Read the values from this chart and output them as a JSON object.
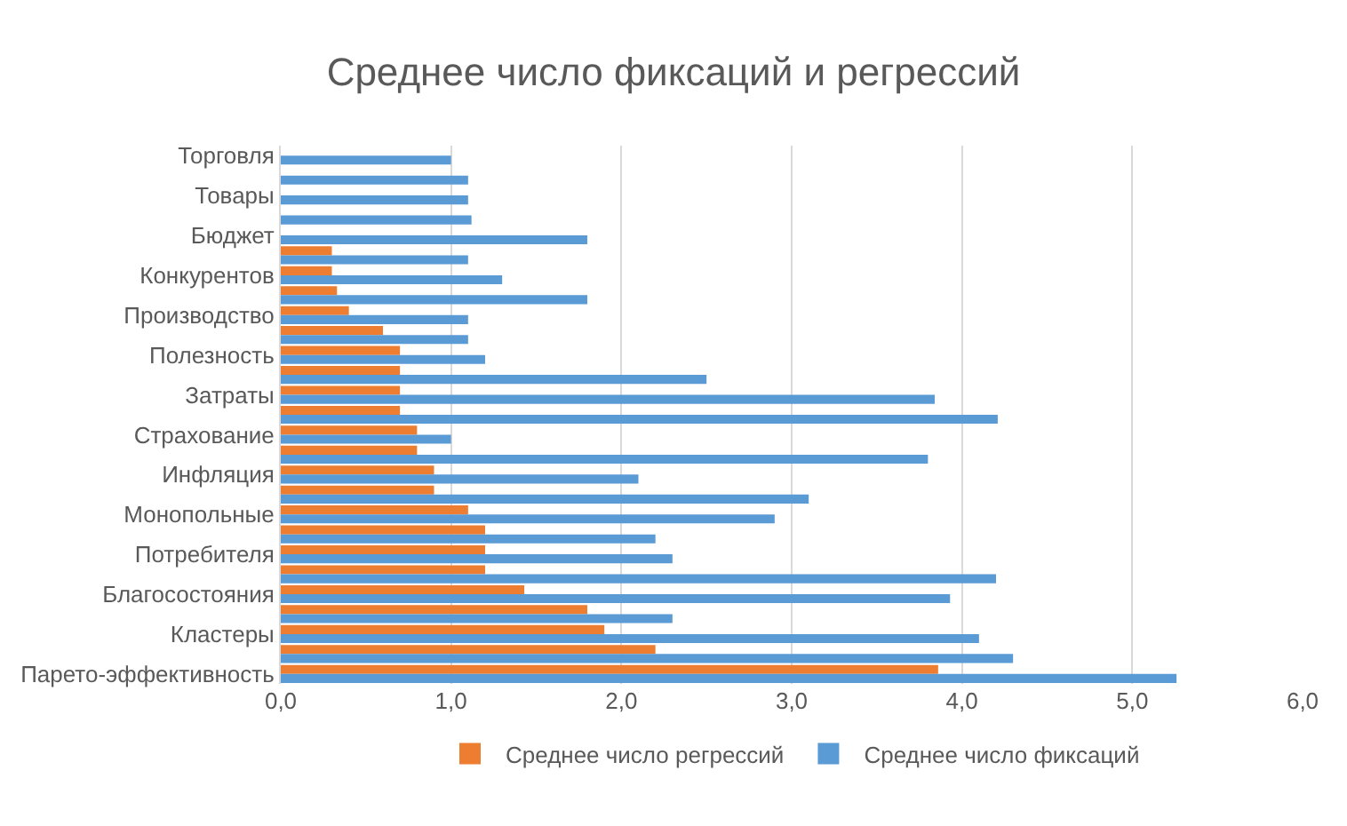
{
  "chart_data": {
    "type": "bar",
    "orientation": "horizontal",
    "title": "Среднее число фиксаций и регрессий",
    "categories": [
      "Торговля",
      null,
      "Товары",
      null,
      "Бюджет",
      null,
      "Конкурентов",
      null,
      "Производство",
      null,
      "Полезность",
      null,
      "Затраты",
      null,
      "Страхование",
      null,
      "Инфляция",
      null,
      "Монопольные",
      null,
      "Потребителя",
      null,
      "Благосостояния",
      null,
      "Кластеры",
      null,
      "Парето-эффективность"
    ],
    "series": [
      {
        "name": "Среднее число регрессий",
        "color": "#ed7d31",
        "values": [
          null,
          null,
          null,
          null,
          null,
          0.3,
          0.3,
          0.33,
          0.4,
          0.6,
          0.7,
          0.7,
          0.7,
          0.7,
          0.8,
          0.8,
          0.9,
          0.9,
          1.1,
          1.2,
          1.2,
          1.2,
          1.43,
          1.8,
          1.9,
          2.2,
          3.86
        ]
      },
      {
        "name": "Среднее число фиксаций",
        "color": "#5b9bd5",
        "values": [
          1.0,
          1.1,
          1.1,
          1.12,
          1.8,
          1.1,
          1.3,
          1.8,
          1.1,
          1.1,
          1.2,
          2.5,
          3.84,
          4.21,
          1.0,
          3.8,
          2.1,
          3.1,
          2.9,
          2.2,
          2.3,
          4.2,
          3.93,
          2.3,
          4.1,
          4.3,
          5.26
        ]
      }
    ],
    "xlim": [
      0,
      6
    ],
    "xticks": [
      {
        "value": 0,
        "label": "0,0"
      },
      {
        "value": 1,
        "label": "1,0"
      },
      {
        "value": 2,
        "label": "2,0"
      },
      {
        "value": 3,
        "label": "3,0"
      },
      {
        "value": 4,
        "label": "4,0"
      },
      {
        "value": 5,
        "label": "5,0"
      },
      {
        "value": 6,
        "label": "6,0"
      }
    ],
    "grid": "x",
    "legend": "bottom"
  }
}
